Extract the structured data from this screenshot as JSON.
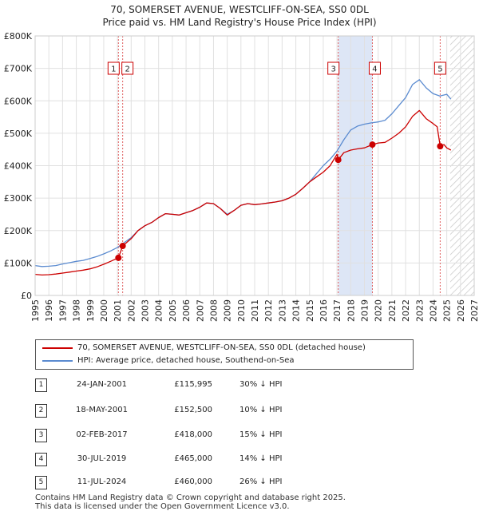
{
  "header": {
    "title": "70, SOMERSET AVENUE, WESTCLIFF-ON-SEA, SS0 0DL",
    "subtitle": "Price paid vs. HM Land Registry's House Price Index (HPI)"
  },
  "legend": {
    "property_label": "70, SOMERSET AVENUE, WESTCLIFF-ON-SEA, SS0 0DL (detached house)",
    "hpi_label": "HPI: Average price, detached house, Southend-on-Sea"
  },
  "colors": {
    "property": "#cc0000",
    "hpi": "#5b8bd0",
    "shade": "#dde6f6",
    "grid": "#e0e0e0"
  },
  "transactions": [
    {
      "num": "1",
      "date": "24-JAN-2001",
      "price": "£115,995",
      "hpi": "30% ↓ HPI"
    },
    {
      "num": "2",
      "date": "18-MAY-2001",
      "price": "£152,500",
      "hpi": "10% ↓ HPI"
    },
    {
      "num": "3",
      "date": "02-FEB-2017",
      "price": "£418,000",
      "hpi": "15% ↓ HPI"
    },
    {
      "num": "4",
      "date": "30-JUL-2019",
      "price": "£465,000",
      "hpi": "14% ↓ HPI"
    },
    {
      "num": "5",
      "date": "11-JUL-2024",
      "price": "£460,000",
      "hpi": "26% ↓ HPI"
    }
  ],
  "footer": {
    "line1": "Contains HM Land Registry data © Crown copyright and database right 2025.",
    "line2": "This data is licensed under the Open Government Licence v3.0."
  },
  "chart_data": {
    "type": "line",
    "title": "70, SOMERSET AVENUE, WESTCLIFF-ON-SEA, SS0 0DL",
    "subtitle": "Price paid vs. HM Land Registry's House Price Index (HPI)",
    "xlabel": "",
    "ylabel": "",
    "xlim": [
      1995,
      2027
    ],
    "ylim": [
      0,
      800000
    ],
    "x_ticks": [
      1995,
      1996,
      1997,
      1998,
      1999,
      2000,
      2001,
      2002,
      2003,
      2004,
      2005,
      2006,
      2007,
      2008,
      2009,
      2010,
      2011,
      2012,
      2013,
      2014,
      2015,
      2016,
      2017,
      2018,
      2019,
      2020,
      2021,
      2022,
      2023,
      2024,
      2025,
      2026,
      2027
    ],
    "y_ticks": [
      {
        "value": 0,
        "label": "£0"
      },
      {
        "value": 100000,
        "label": "£100K"
      },
      {
        "value": 200000,
        "label": "£200K"
      },
      {
        "value": 300000,
        "label": "£300K"
      },
      {
        "value": 400000,
        "label": "£400K"
      },
      {
        "value": 500000,
        "label": "£500K"
      },
      {
        "value": 600000,
        "label": "£600K"
      },
      {
        "value": 700000,
        "label": "£700K"
      },
      {
        "value": 800000,
        "label": "£800K"
      }
    ],
    "grid": true,
    "shaded_range": [
      2017.09,
      2019.58
    ],
    "forecast_start": 2025.25,
    "series": [
      {
        "name": "HPI: Average price, detached house, Southend-on-Sea",
        "color": "#5b8bd0",
        "points": [
          [
            1995.0,
            92000
          ],
          [
            1995.5,
            89000
          ],
          [
            1996.0,
            90000
          ],
          [
            1996.5,
            92000
          ],
          [
            1997.0,
            97000
          ],
          [
            1997.5,
            101000
          ],
          [
            1998.0,
            105000
          ],
          [
            1998.5,
            108000
          ],
          [
            1999.0,
            114000
          ],
          [
            1999.5,
            120000
          ],
          [
            2000.0,
            128000
          ],
          [
            2000.5,
            137000
          ],
          [
            2001.0,
            148000
          ],
          [
            2001.4,
            160000
          ],
          [
            2002.0,
            178000
          ],
          [
            2002.5,
            200000
          ],
          [
            2003.0,
            215000
          ],
          [
            2003.5,
            225000
          ],
          [
            2004.0,
            240000
          ],
          [
            2004.5,
            252000
          ],
          [
            2005.0,
            250000
          ],
          [
            2005.5,
            248000
          ],
          [
            2006.0,
            255000
          ],
          [
            2006.5,
            262000
          ],
          [
            2007.0,
            272000
          ],
          [
            2007.5,
            285000
          ],
          [
            2008.0,
            283000
          ],
          [
            2008.5,
            268000
          ],
          [
            2009.0,
            250000
          ],
          [
            2009.5,
            262000
          ],
          [
            2010.0,
            278000
          ],
          [
            2010.5,
            283000
          ],
          [
            2011.0,
            280000
          ],
          [
            2011.5,
            282000
          ],
          [
            2012.0,
            285000
          ],
          [
            2012.5,
            288000
          ],
          [
            2013.0,
            292000
          ],
          [
            2013.5,
            300000
          ],
          [
            2014.0,
            312000
          ],
          [
            2014.5,
            330000
          ],
          [
            2015.0,
            350000
          ],
          [
            2015.5,
            375000
          ],
          [
            2016.0,
            400000
          ],
          [
            2016.5,
            420000
          ],
          [
            2017.0,
            445000
          ],
          [
            2017.5,
            480000
          ],
          [
            2018.0,
            510000
          ],
          [
            2018.5,
            522000
          ],
          [
            2019.0,
            528000
          ],
          [
            2019.5,
            532000
          ],
          [
            2020.0,
            535000
          ],
          [
            2020.5,
            540000
          ],
          [
            2021.0,
            560000
          ],
          [
            2021.5,
            585000
          ],
          [
            2022.0,
            610000
          ],
          [
            2022.5,
            650000
          ],
          [
            2023.0,
            665000
          ],
          [
            2023.5,
            640000
          ],
          [
            2024.0,
            622000
          ],
          [
            2024.5,
            615000
          ],
          [
            2025.0,
            620000
          ],
          [
            2025.3,
            605000
          ]
        ]
      },
      {
        "name": "70, SOMERSET AVENUE, WESTCLIFF-ON-SEA, SS0 0DL (detached house)",
        "color": "#cc0000",
        "points": [
          [
            1995.0,
            65000
          ],
          [
            1995.5,
            63000
          ],
          [
            1996.0,
            64000
          ],
          [
            1996.5,
            66000
          ],
          [
            1997.0,
            69000
          ],
          [
            1997.5,
            72000
          ],
          [
            1998.0,
            75000
          ],
          [
            1998.5,
            78000
          ],
          [
            1999.0,
            82000
          ],
          [
            1999.5,
            88000
          ],
          [
            2000.0,
            96000
          ],
          [
            2000.5,
            105000
          ],
          [
            2001.07,
            115995
          ],
          [
            2001.38,
            152500
          ],
          [
            2002.0,
            175000
          ],
          [
            2002.5,
            200000
          ],
          [
            2003.0,
            215000
          ],
          [
            2003.5,
            225000
          ],
          [
            2004.0,
            240000
          ],
          [
            2004.5,
            252000
          ],
          [
            2005.0,
            250000
          ],
          [
            2005.5,
            248000
          ],
          [
            2006.0,
            255000
          ],
          [
            2006.5,
            262000
          ],
          [
            2007.0,
            272000
          ],
          [
            2007.5,
            285000
          ],
          [
            2008.0,
            283000
          ],
          [
            2008.5,
            268000
          ],
          [
            2009.0,
            248000
          ],
          [
            2009.5,
            262000
          ],
          [
            2010.0,
            278000
          ],
          [
            2010.5,
            283000
          ],
          [
            2011.0,
            280000
          ],
          [
            2011.5,
            282000
          ],
          [
            2012.0,
            285000
          ],
          [
            2012.5,
            288000
          ],
          [
            2013.0,
            292000
          ],
          [
            2013.5,
            300000
          ],
          [
            2014.0,
            312000
          ],
          [
            2014.5,
            330000
          ],
          [
            2015.0,
            350000
          ],
          [
            2015.5,
            365000
          ],
          [
            2016.0,
            380000
          ],
          [
            2016.5,
            400000
          ],
          [
            2017.0,
            435000
          ],
          [
            2017.09,
            418000
          ],
          [
            2017.5,
            440000
          ],
          [
            2018.0,
            448000
          ],
          [
            2018.5,
            452000
          ],
          [
            2019.0,
            455000
          ],
          [
            2019.58,
            465000
          ],
          [
            2020.0,
            470000
          ],
          [
            2020.5,
            472000
          ],
          [
            2021.0,
            485000
          ],
          [
            2021.5,
            500000
          ],
          [
            2022.0,
            520000
          ],
          [
            2022.5,
            552000
          ],
          [
            2023.0,
            570000
          ],
          [
            2023.5,
            545000
          ],
          [
            2024.0,
            530000
          ],
          [
            2024.3,
            520000
          ],
          [
            2024.52,
            460000
          ],
          [
            2024.8,
            465000
          ],
          [
            2025.0,
            455000
          ],
          [
            2025.3,
            448000
          ]
        ]
      }
    ],
    "sales": [
      {
        "num": "1",
        "x": 2001.07,
        "y": 115995
      },
      {
        "num": "2",
        "x": 2001.38,
        "y": 152500
      },
      {
        "num": "3",
        "x": 2017.09,
        "y": 418000
      },
      {
        "num": "4",
        "x": 2019.58,
        "y": 465000
      },
      {
        "num": "5",
        "x": 2024.52,
        "y": 460000
      }
    ]
  }
}
